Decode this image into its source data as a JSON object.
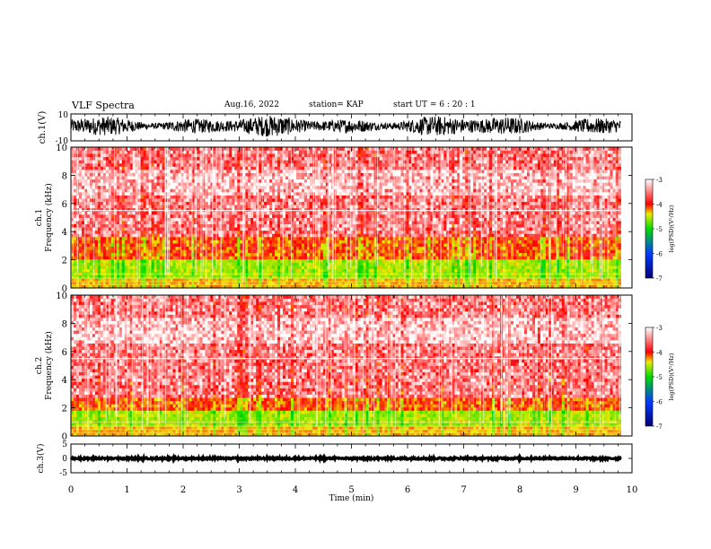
{
  "header": {
    "title": "VLF Spectra",
    "date": "Aug.16, 2022",
    "station": "station= KAP",
    "start": "start  UT =   6 : 20 : 1"
  },
  "chart_data": [
    {
      "panel": "ch1-waveform",
      "type": "line",
      "ylabel": "ch.1(V)",
      "ylim": [
        -10,
        10
      ],
      "ytick_labels": [
        "10",
        "-10"
      ],
      "xlim": [
        0,
        10
      ],
      "series_color": "#000000",
      "approx_range_v": [
        -7,
        9
      ],
      "data_end_min": 9.8
    },
    {
      "panel": "ch1-spectrogram",
      "type": "heatmap",
      "ylabel": "ch.1\nFrequency (kHz)",
      "ylim": [
        0,
        10
      ],
      "yticks": [
        0,
        2,
        4,
        6,
        8,
        10
      ],
      "xlim": [
        0,
        10
      ],
      "data_end_min": 9.8,
      "colorbar": {
        "label": "log(PSD)(V²/Hz)",
        "range": [
          -7,
          -3
        ],
        "ticks": [
          -3,
          -4,
          -5,
          -6,
          -7
        ]
      },
      "bands_khz": {
        "strong_low": [
          0.8,
          2.0
        ],
        "mid": [
          2.0,
          3.6
        ],
        "background_above": 3.6
      },
      "notable_lines_khz": [
        5.5
      ]
    },
    {
      "panel": "ch2-spectrogram",
      "type": "heatmap",
      "ylabel": "ch.2\nFrequency (kHz)",
      "ylim": [
        0,
        10
      ],
      "yticks": [
        0,
        2,
        4,
        6,
        8,
        10
      ],
      "xlim": [
        0,
        10
      ],
      "data_end_min": 9.8,
      "colorbar": {
        "label": "log(PSD)(V²/Hz)",
        "range": [
          -7,
          -3
        ],
        "ticks": [
          -3,
          -4,
          -5,
          -6,
          -7
        ]
      },
      "bands_khz": {
        "strong_low": [
          0.8,
          1.8
        ],
        "mid": [
          1.8,
          2.8
        ],
        "background_above": 2.8
      },
      "notable_lines_khz": [
        5.5
      ]
    },
    {
      "panel": "ch3-waveform",
      "type": "line",
      "ylabel": "ch.3(V)",
      "ylim": [
        -5,
        5
      ],
      "ytick_labels": [
        "5",
        "0",
        "-5"
      ],
      "xlim": [
        0,
        10
      ],
      "xlabel": "Time (min)",
      "xticks": [
        0,
        1,
        2,
        3,
        4,
        5,
        6,
        7,
        8,
        9,
        10
      ],
      "series_color": "#000000",
      "approx_range_v": [
        -0.3,
        0.3
      ],
      "data_end_min": 9.8
    }
  ]
}
